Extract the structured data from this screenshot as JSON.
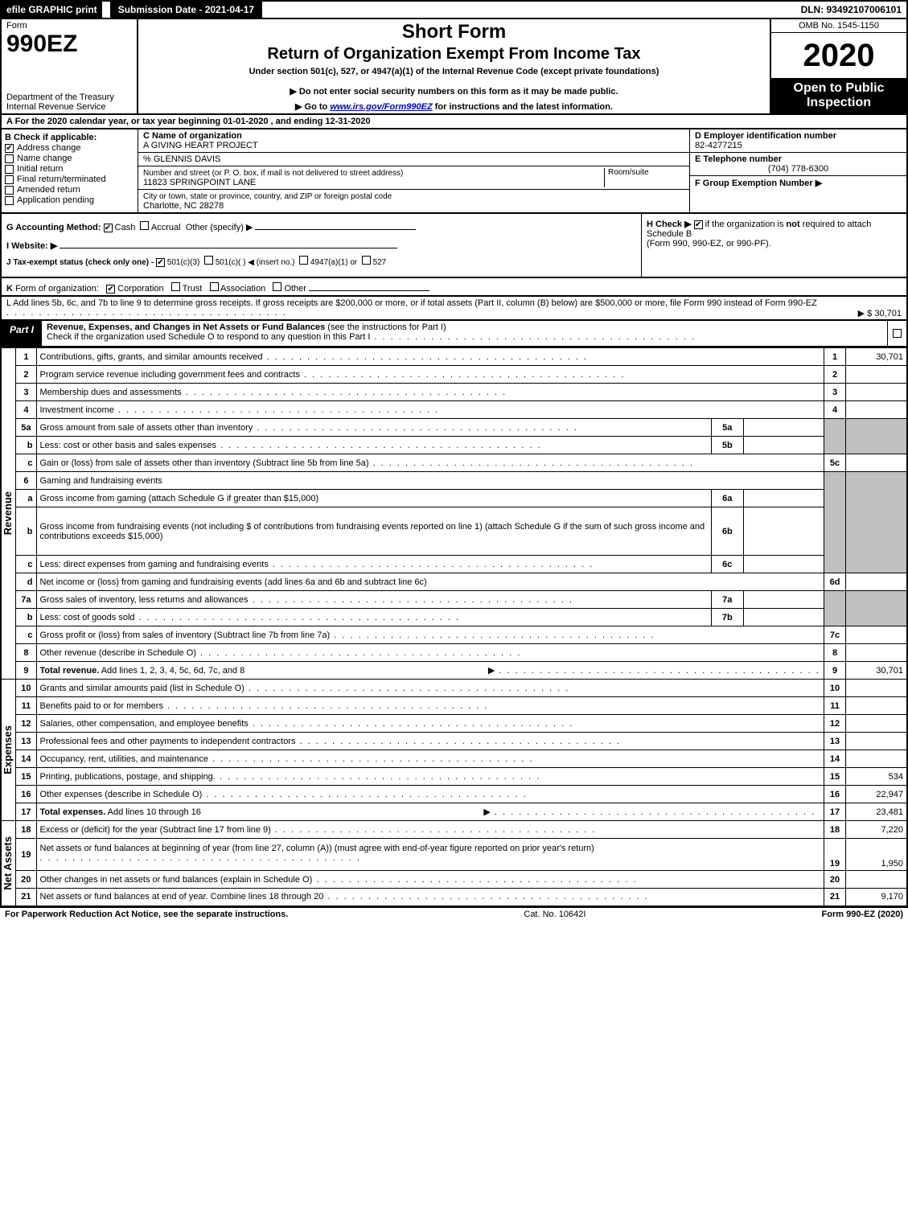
{
  "colors": {
    "black": "#000000",
    "white": "#ffffff",
    "grey_fill": "#c0c0c0",
    "link": "#0000cc"
  },
  "top_bar": {
    "efile": "efile GRAPHIC print",
    "submission": "Submission Date - 2021-04-17",
    "dln": "DLN: 93492107006101"
  },
  "header": {
    "form_word": "Form",
    "form_num": "990EZ",
    "dept": "Department of the Treasury",
    "irs": "Internal Revenue Service",
    "short": "Short Form",
    "return_title": "Return of Organization Exempt From Income Tax",
    "under": "Under section 501(c), 527, or 4947(a)(1) of the Internal Revenue Code (except private foundations)",
    "notice": "▶ Do not enter social security numbers on this form as it may be made public.",
    "goto_prefix": "▶ Go to ",
    "goto_link": "www.irs.gov/Form990EZ",
    "goto_suffix": " for instructions and the latest information.",
    "omb": "OMB No. 1545-1150",
    "year": "2020",
    "open": "Open to Public Inspection"
  },
  "row_a": "A  For the 2020 calendar year, or tax year beginning 01-01-2020 , and ending 12-31-2020",
  "section_b": {
    "header": "B  Check if applicable:",
    "items": [
      {
        "label": "Address change",
        "checked": true
      },
      {
        "label": "Name change",
        "checked": false
      },
      {
        "label": "Initial return",
        "checked": false
      },
      {
        "label": "Final return/terminated",
        "checked": false
      },
      {
        "label": "Amended return",
        "checked": false
      },
      {
        "label": "Application pending",
        "checked": false
      }
    ]
  },
  "section_c": {
    "name_lbl": "C Name of organization",
    "name": "A GIVING HEART PROJECT",
    "care_of": "% GLENNIS DAVIS",
    "street_lbl": "Number and street (or P. O. box, if mail is not delivered to street address)",
    "room_lbl": "Room/suite",
    "street": "11823 SPRINGPOINT LANE",
    "city_lbl": "City or town, state or province, country, and ZIP or foreign postal code",
    "city": "Charlotte, NC  28278"
  },
  "section_d": {
    "ein_lbl": "D Employer identification number",
    "ein": "82-4277215",
    "tel_lbl": "E Telephone number",
    "tel": "(704) 778-6300",
    "grp_lbl": "F Group Exemption Number  ▶"
  },
  "row_g": {
    "g": "G Accounting Method:",
    "cash": "Cash",
    "accrual": "Accrual",
    "other": "Other (specify) ▶",
    "i": "I Website: ▶",
    "j": "J Tax-exempt status (check only one) -",
    "j_501c3": "501(c)(3)",
    "j_501c": "501(c)(  ) ◀ (insert no.)",
    "j_4947": "4947(a)(1) or",
    "j_527": "527"
  },
  "row_h": {
    "h1": "H  Check ▶ ",
    "h2": " if the organization is ",
    "h3": "not",
    "h4": " required to attach Schedule B",
    "h5": "(Form 990, 990-EZ, or 990-PF)."
  },
  "row_k": "K Form of organization:  ☑ Corporation  ☐ Trust  ☐ Association  ☐ Other",
  "row_l": {
    "text": "L Add lines 5b, 6c, and 7b to line 9 to determine gross receipts. If gross receipts are $200,000 or more, or if total assets (Part II, column (B) below) are $500,000 or more, file Form 990 instead of Form 990-EZ",
    "amt": "▶ $ 30,701"
  },
  "part1": {
    "label": "Part I",
    "title": "Revenue, Expenses, and Changes in Net Assets or Fund Balances",
    "title_paren": " (see the instructions for Part I)",
    "check": "Check if the organization used Schedule O to respond to any question in this Part I",
    "check_val": "☐"
  },
  "side_labels": {
    "revenue": "Revenue",
    "expenses": "Expenses",
    "netassets": "Net Assets"
  },
  "lines": {
    "1": {
      "ln": "1",
      "desc": "Contributions, gifts, grants, and similar amounts received",
      "rn": "1",
      "val": "30,701"
    },
    "2": {
      "ln": "2",
      "desc": "Program service revenue including government fees and contracts",
      "rn": "2",
      "val": ""
    },
    "3": {
      "ln": "3",
      "desc": "Membership dues and assessments",
      "rn": "3",
      "val": ""
    },
    "4": {
      "ln": "4",
      "desc": "Investment income",
      "rn": "4",
      "val": ""
    },
    "5a": {
      "ln": "5a",
      "desc": "Gross amount from sale of assets other than inventory",
      "mini": "5a"
    },
    "5b": {
      "ln": "b",
      "desc": "Less: cost or other basis and sales expenses",
      "mini": "5b"
    },
    "5c": {
      "ln": "c",
      "desc": "Gain or (loss) from sale of assets other than inventory (Subtract line 5b from line 5a)",
      "rn": "5c",
      "val": ""
    },
    "6": {
      "ln": "6",
      "desc": "Gaming and fundraising events"
    },
    "6a": {
      "ln": "a",
      "desc": "Gross income from gaming (attach Schedule G if greater than $15,000)",
      "mini": "6a"
    },
    "6b": {
      "ln": "b",
      "desc": "Gross income from fundraising events (not including $                   of contributions from fundraising events reported on line 1) (attach Schedule G if the sum of such gross income and contributions exceeds $15,000)",
      "mini": "6b"
    },
    "6c": {
      "ln": "c",
      "desc": "Less: direct expenses from gaming and fundraising events",
      "mini": "6c"
    },
    "6d": {
      "ln": "d",
      "desc": "Net income or (loss) from gaming and fundraising events (add lines 6a and 6b and subtract line 6c)",
      "rn": "6d",
      "val": ""
    },
    "7a": {
      "ln": "7a",
      "desc": "Gross sales of inventory, less returns and allowances",
      "mini": "7a"
    },
    "7b": {
      "ln": "b",
      "desc": "Less: cost of goods sold",
      "mini": "7b"
    },
    "7c": {
      "ln": "c",
      "desc": "Gross profit or (loss) from sales of inventory (Subtract line 7b from line 7a)",
      "rn": "7c",
      "val": ""
    },
    "8": {
      "ln": "8",
      "desc": "Other revenue (describe in Schedule O)",
      "rn": "8",
      "val": ""
    },
    "9": {
      "ln": "9",
      "desc": "Total revenue. Add lines 1, 2, 3, 4, 5c, 6d, 7c, and 8",
      "rn": "9",
      "val": "30,701",
      "bold": true,
      "arrow": true
    },
    "10": {
      "ln": "10",
      "desc": "Grants and similar amounts paid (list in Schedule O)",
      "rn": "10",
      "val": ""
    },
    "11": {
      "ln": "11",
      "desc": "Benefits paid to or for members",
      "rn": "11",
      "val": ""
    },
    "12": {
      "ln": "12",
      "desc": "Salaries, other compensation, and employee benefits",
      "rn": "12",
      "val": ""
    },
    "13": {
      "ln": "13",
      "desc": "Professional fees and other payments to independent contractors",
      "rn": "13",
      "val": ""
    },
    "14": {
      "ln": "14",
      "desc": "Occupancy, rent, utilities, and maintenance",
      "rn": "14",
      "val": ""
    },
    "15": {
      "ln": "15",
      "desc": "Printing, publications, postage, and shipping.",
      "rn": "15",
      "val": "534"
    },
    "16": {
      "ln": "16",
      "desc": "Other expenses (describe in Schedule O)",
      "rn": "16",
      "val": "22,947"
    },
    "17": {
      "ln": "17",
      "desc": "Total expenses. Add lines 10 through 16",
      "rn": "17",
      "val": "23,481",
      "bold": true,
      "arrow": true
    },
    "18": {
      "ln": "18",
      "desc": "Excess or (deficit) for the year (Subtract line 17 from line 9)",
      "rn": "18",
      "val": "7,220"
    },
    "19": {
      "ln": "19",
      "desc": "Net assets or fund balances at beginning of year (from line 27, column (A)) (must agree with end-of-year figure reported on prior year's return)",
      "rn": "19",
      "val": "1,950"
    },
    "20": {
      "ln": "20",
      "desc": "Other changes in net assets or fund balances (explain in Schedule O)",
      "rn": "20",
      "val": ""
    },
    "21": {
      "ln": "21",
      "desc": "Net assets or fund balances at end of year. Combine lines 18 through 20",
      "rn": "21",
      "val": "9,170"
    }
  },
  "footer": {
    "left": "For Paperwork Reduction Act Notice, see the separate instructions.",
    "mid": "Cat. No. 10642I",
    "right": "Form 990-EZ (2020)"
  }
}
